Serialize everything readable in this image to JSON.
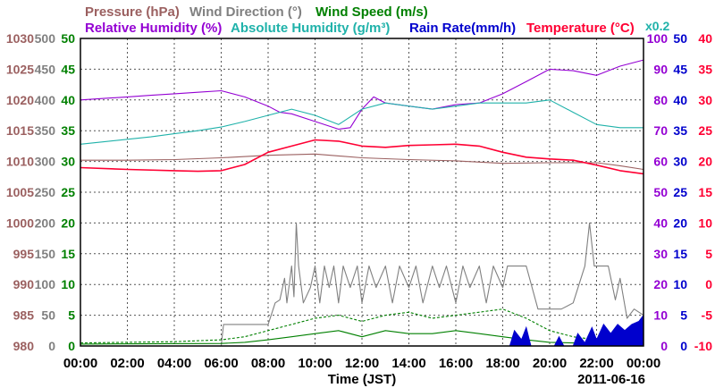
{
  "chart_data": {
    "type": "line",
    "date": "2011-06-16",
    "xlabel": "Time (JST)",
    "x_ticks": [
      "00:00",
      "02:00",
      "04:00",
      "06:00",
      "08:00",
      "10:00",
      "12:00",
      "14:00",
      "16:00",
      "18:00",
      "20:00",
      "22:00",
      "00:00"
    ],
    "x_range_hours": [
      0,
      24
    ],
    "grid": true,
    "axis_multiplier_note": "x0.2",
    "axes": {
      "pressure": {
        "label": "Pressure (hPa)",
        "color": "#9b6060",
        "ticks": [
          "980",
          "985",
          "990",
          "995",
          "1000",
          "1005",
          "1010",
          "1015",
          "1020",
          "1025",
          "1030"
        ],
        "range": [
          980,
          1030
        ]
      },
      "wind_direction": {
        "label": "Wind Direction (°)",
        "color": "#808080",
        "ticks": [
          "0",
          "50",
          "100",
          "150",
          "200",
          "250",
          "300",
          "350",
          "400",
          "450",
          "500"
        ],
        "range": [
          0,
          500
        ]
      },
      "wind_speed": {
        "label": "Wind Speed (m/s)",
        "color": "#008000",
        "ticks": [
          "0",
          "5",
          "10",
          "15",
          "20",
          "25",
          "30",
          "35",
          "40",
          "45",
          "50"
        ],
        "range": [
          0,
          50
        ]
      },
      "relative_humidity": {
        "label": "Relative Humidity (%)",
        "color": "#9400d3",
        "ticks": [
          "0",
          "10",
          "20",
          "30",
          "40",
          "50",
          "60",
          "70",
          "80",
          "90",
          "100"
        ],
        "range": [
          0,
          100
        ]
      },
      "absolute_humidity": {
        "label": "Absolute Humidity (g/m³)",
        "color": "#20b2aa",
        "ticks": [
          "0",
          "5",
          "10",
          "15",
          "20",
          "25",
          "30",
          "35",
          "40",
          "45",
          "50"
        ],
        "range": [
          0,
          50
        ]
      },
      "rain_rate": {
        "label": "Rain Rate(mm/h)",
        "color": "#0000cd",
        "ticks": [
          "0",
          "5",
          "10",
          "15",
          "20",
          "25",
          "30",
          "35",
          "40",
          "45",
          "50"
        ],
        "range": [
          0,
          50
        ]
      },
      "temperature": {
        "label": "Temperature (°C)",
        "color": "#ff0033",
        "ticks": [
          "-10",
          "-5",
          "0",
          "5",
          "10",
          "15",
          "20",
          "25",
          "30",
          "35",
          "40"
        ],
        "range": [
          -10,
          40
        ]
      }
    },
    "series": [
      {
        "axis": "relative_humidity",
        "points": [
          [
            0,
            80
          ],
          [
            1,
            80.5
          ],
          [
            2,
            81
          ],
          [
            3,
            81.5
          ],
          [
            4,
            82
          ],
          [
            5,
            82.5
          ],
          [
            6,
            83
          ],
          [
            7,
            81
          ],
          [
            8,
            78
          ],
          [
            8.5,
            76
          ],
          [
            9,
            75.5
          ],
          [
            10,
            73
          ],
          [
            11,
            70.5
          ],
          [
            11.5,
            71
          ],
          [
            12,
            77
          ],
          [
            12.5,
            81
          ],
          [
            13,
            79
          ],
          [
            14,
            78
          ],
          [
            15,
            77
          ],
          [
            16,
            78.5
          ],
          [
            17,
            79
          ],
          [
            18,
            82
          ],
          [
            19,
            86
          ],
          [
            20,
            90
          ],
          [
            21,
            89.5
          ],
          [
            22,
            88
          ],
          [
            23,
            91
          ],
          [
            24,
            93
          ]
        ]
      },
      {
        "axis": "absolute_humidity",
        "points": [
          [
            0,
            32.8
          ],
          [
            1,
            33.2
          ],
          [
            2,
            33.6
          ],
          [
            3,
            34
          ],
          [
            4,
            34.5
          ],
          [
            5,
            35
          ],
          [
            6,
            35.6
          ],
          [
            7,
            36.5
          ],
          [
            8,
            37.5
          ],
          [
            9,
            38.5
          ],
          [
            10,
            37.5
          ],
          [
            11,
            36
          ],
          [
            12,
            38.5
          ],
          [
            13,
            39.5
          ],
          [
            14,
            39
          ],
          [
            15,
            38.5
          ],
          [
            16,
            39
          ],
          [
            17,
            39.5
          ],
          [
            18,
            39.5
          ],
          [
            19,
            39.5
          ],
          [
            20,
            40
          ],
          [
            21,
            38
          ],
          [
            22,
            36
          ],
          [
            23,
            35.5
          ],
          [
            24,
            35.5
          ]
        ]
      },
      {
        "axis": "pressure",
        "points": [
          [
            0,
            1010.2
          ],
          [
            2,
            1010.2
          ],
          [
            4,
            1010.3
          ],
          [
            6,
            1010.6
          ],
          [
            8,
            1011
          ],
          [
            10,
            1011.2
          ],
          [
            12,
            1010.6
          ],
          [
            14,
            1010.3
          ],
          [
            16,
            1010.1
          ],
          [
            18,
            1009.7
          ],
          [
            20,
            1009.8
          ],
          [
            22,
            1009.8
          ],
          [
            23,
            1009.3
          ],
          [
            24,
            1008.7
          ]
        ]
      },
      {
        "axis": "temperature",
        "points": [
          [
            0,
            19
          ],
          [
            2,
            18.7
          ],
          [
            4,
            18.5
          ],
          [
            5,
            18.4
          ],
          [
            6,
            18.5
          ],
          [
            7,
            19.5
          ],
          [
            8,
            21.5
          ],
          [
            9,
            22.5
          ],
          [
            10,
            23.5
          ],
          [
            11,
            23.3
          ],
          [
            12,
            22.5
          ],
          [
            13,
            22.3
          ],
          [
            14,
            22.6
          ],
          [
            15,
            22.7
          ],
          [
            16,
            22.8
          ],
          [
            17,
            22.5
          ],
          [
            18,
            21.5
          ],
          [
            19,
            20.7
          ],
          [
            20,
            20.4
          ],
          [
            21,
            20.2
          ],
          [
            22,
            19.4
          ],
          [
            23,
            18.5
          ],
          [
            24,
            18
          ]
        ]
      },
      {
        "axis": "wind_direction",
        "points": [
          [
            0,
            0
          ],
          [
            6,
            0
          ],
          [
            6.1,
            35
          ],
          [
            8,
            35
          ],
          [
            8.3,
            70
          ],
          [
            8.5,
            75
          ],
          [
            8.7,
            110
          ],
          [
            8.8,
            70
          ],
          [
            9,
            130
          ],
          [
            9.1,
            80
          ],
          [
            9.2,
            200
          ],
          [
            9.3,
            130
          ],
          [
            9.5,
            70
          ],
          [
            9.8,
            95
          ],
          [
            10,
            130
          ],
          [
            10.2,
            70
          ],
          [
            10.4,
            130
          ],
          [
            10.6,
            95
          ],
          [
            10.8,
            130
          ],
          [
            11,
            70
          ],
          [
            11.2,
            130
          ],
          [
            11.5,
            95
          ],
          [
            11.8,
            130
          ],
          [
            12,
            70
          ],
          [
            12.3,
            130
          ],
          [
            12.6,
            95
          ],
          [
            13,
            130
          ],
          [
            13.3,
            70
          ],
          [
            13.6,
            130
          ],
          [
            14,
            95
          ],
          [
            14.3,
            130
          ],
          [
            14.6,
            70
          ],
          [
            15,
            130
          ],
          [
            15.3,
            95
          ],
          [
            15.6,
            130
          ],
          [
            16,
            70
          ],
          [
            16.3,
            130
          ],
          [
            16.6,
            95
          ],
          [
            17,
            130
          ],
          [
            17.3,
            70
          ],
          [
            17.6,
            130
          ],
          [
            18,
            95
          ],
          [
            18.2,
            130
          ],
          [
            19,
            130
          ],
          [
            19.5,
            60
          ],
          [
            20.5,
            60
          ],
          [
            21,
            70
          ],
          [
            21.5,
            130
          ],
          [
            21.7,
            200
          ],
          [
            21.9,
            130
          ],
          [
            22.5,
            130
          ],
          [
            22.8,
            75
          ],
          [
            23,
            110
          ],
          [
            23.3,
            45
          ],
          [
            23.6,
            60
          ],
          [
            24,
            50
          ]
        ]
      },
      {
        "axis": "wind_speed",
        "line": "dashed",
        "points": [
          [
            0,
            0.5
          ],
          [
            4,
            0.7
          ],
          [
            6,
            1
          ],
          [
            7,
            1.5
          ],
          [
            8,
            2.5
          ],
          [
            9,
            3.5
          ],
          [
            10,
            4.5
          ],
          [
            11,
            5
          ],
          [
            12,
            4
          ],
          [
            13,
            5
          ],
          [
            14,
            5.5
          ],
          [
            15,
            4.5
          ],
          [
            16,
            5
          ],
          [
            17,
            5.5
          ],
          [
            18,
            6
          ],
          [
            19,
            4.5
          ],
          [
            20,
            2.5
          ],
          [
            21,
            1.5
          ],
          [
            22,
            1
          ],
          [
            23,
            1.5
          ],
          [
            24,
            2
          ]
        ]
      },
      {
        "axis": "wind_speed",
        "line": "solid",
        "points": [
          [
            0,
            0.3
          ],
          [
            6,
            0.4
          ],
          [
            7,
            0.6
          ],
          [
            8,
            1
          ],
          [
            9,
            1.5
          ],
          [
            10,
            2
          ],
          [
            11,
            2.5
          ],
          [
            12,
            1.5
          ],
          [
            13,
            2.5
          ],
          [
            14,
            2
          ],
          [
            15,
            2
          ],
          [
            16,
            2.5
          ],
          [
            17,
            2
          ],
          [
            18,
            1.5
          ],
          [
            19,
            1
          ],
          [
            20,
            0.6
          ],
          [
            21,
            0.5
          ],
          [
            22,
            0.4
          ],
          [
            24,
            0.5
          ]
        ]
      },
      {
        "axis": "rain_rate",
        "type": "area",
        "points": [
          [
            18.3,
            0
          ],
          [
            18.5,
            2.5
          ],
          [
            18.8,
            1
          ],
          [
            19,
            3
          ],
          [
            19.2,
            0
          ],
          [
            20.2,
            0
          ],
          [
            20.4,
            1.5
          ],
          [
            20.6,
            0
          ],
          [
            21,
            0
          ],
          [
            21.2,
            2
          ],
          [
            21.5,
            0.5
          ],
          [
            21.8,
            3
          ],
          [
            22,
            1
          ],
          [
            22.3,
            3.5
          ],
          [
            22.6,
            2
          ],
          [
            22.9,
            3.5
          ],
          [
            23.2,
            2.5
          ],
          [
            23.5,
            3.5
          ],
          [
            23.8,
            4
          ],
          [
            24,
            5
          ]
        ]
      }
    ]
  }
}
